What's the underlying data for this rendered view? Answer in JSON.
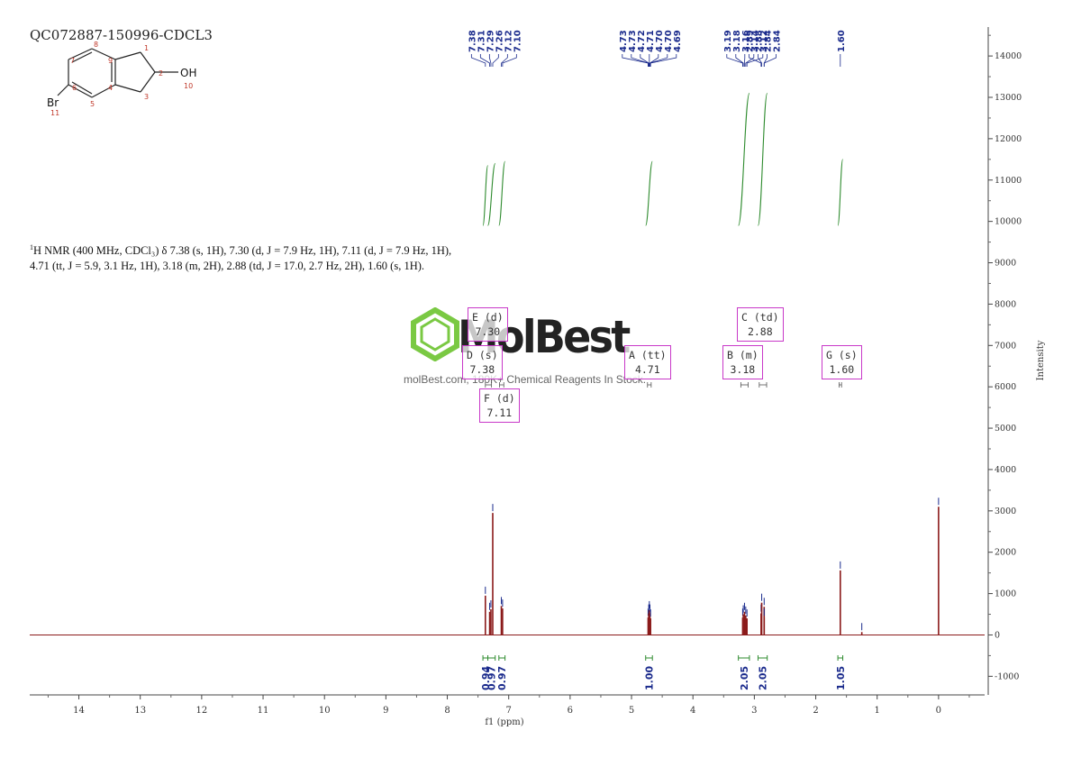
{
  "sample_id": "QC072887-150996-CDCL3",
  "description": {
    "nucleus_sup": "1",
    "line": "H NMR (400 MHz, CDCl₃) δ 7.38 (s, 1H), 7.30 (d, J = 7.9 Hz, 1H), 7.11 (d, J = 7.9 Hz, 1H), 4.71 (tt, J = 5.9, 3.1 Hz, 1H), 3.18 (m, 2H), 2.88 (td, J = 17.0, 2.7 Hz, 2H), 1.60 (s, 1H)."
  },
  "molecule": {
    "atom_labels": [
      "1",
      "2",
      "3",
      "4",
      "5",
      "6",
      "7",
      "8",
      "9",
      "10",
      "11"
    ],
    "groups": {
      "oh": "OH",
      "br": "Br"
    }
  },
  "watermark": {
    "brand": "MolBest",
    "tagline": "molBest.com, 180K+ Chemical Reagents In Stock."
  },
  "multiplets": [
    {
      "letter": "E",
      "mult": "d",
      "shift": "7.30"
    },
    {
      "letter": "D",
      "mult": "s",
      "shift": "7.38"
    },
    {
      "letter": "F",
      "mult": "d",
      "shift": "7.11"
    },
    {
      "letter": "A",
      "mult": "tt",
      "shift": "4.71"
    },
    {
      "letter": "B",
      "mult": "m",
      "shift": "3.18"
    },
    {
      "letter": "C",
      "mult": "td",
      "shift": "2.88"
    },
    {
      "letter": "G",
      "mult": "s",
      "shift": "1.60"
    }
  ],
  "colors": {
    "spectrum": "#8b1a1a",
    "peak_labels": "#1a2a8c",
    "integral_curve": "#2e8b2e",
    "multiplet_box": "#c838c8",
    "watermark_green": "#7ac943"
  },
  "chart_data": {
    "type": "line",
    "xlabel": "f1 (ppm)",
    "ylabel": "Intensity",
    "xlim": [
      14.8,
      -0.75
    ],
    "ylim": [
      -1450,
      14700
    ],
    "x_ticks": [
      14,
      13,
      12,
      11,
      10,
      9,
      8,
      7,
      6,
      5,
      4,
      3,
      2,
      1,
      0
    ],
    "y_ticks": [
      -1000,
      0,
      1000,
      2000,
      3000,
      4000,
      5000,
      6000,
      7000,
      8000,
      9000,
      10000,
      11000,
      12000,
      13000,
      14000
    ],
    "peaks": [
      {
        "ppm": 7.38,
        "height": 950
      },
      {
        "ppm": 7.31,
        "height": 560
      },
      {
        "ppm": 7.29,
        "height": 620
      },
      {
        "ppm": 7.26,
        "height": 2950
      },
      {
        "ppm": 7.12,
        "height": 700
      },
      {
        "ppm": 7.1,
        "height": 640
      },
      {
        "ppm": 4.73,
        "height": 420
      },
      {
        "ppm": 4.72,
        "height": 520
      },
      {
        "ppm": 4.71,
        "height": 600
      },
      {
        "ppm": 4.7,
        "height": 520
      },
      {
        "ppm": 4.69,
        "height": 400
      },
      {
        "ppm": 3.19,
        "height": 420
      },
      {
        "ppm": 3.18,
        "height": 500
      },
      {
        "ppm": 3.16,
        "height": 560
      },
      {
        "ppm": 3.14,
        "height": 470
      },
      {
        "ppm": 3.12,
        "height": 400
      },
      {
        "ppm": 2.89,
        "height": 520
      },
      {
        "ppm": 2.88,
        "height": 780
      },
      {
        "ppm": 2.84,
        "height": 680
      },
      {
        "ppm": 2.84,
        "height": 420
      },
      {
        "ppm": 1.6,
        "height": 1560
      },
      {
        "ppm": 1.25,
        "height": 70
      },
      {
        "ppm": 0.0,
        "height": 3100
      }
    ],
    "peak_labels": [
      "7.38",
      "7.31",
      "7.29",
      "7.26",
      "7.12",
      "7.10",
      "4.73",
      "4.73",
      "4.72",
      "4.71",
      "4.70",
      "4.70",
      "4.69",
      "3.19",
      "3.18",
      "3.16",
      "3.14",
      "3.12",
      "2.89",
      "2.88",
      "2.84",
      "2.84",
      "1.60"
    ],
    "integrals": [
      {
        "from": 7.42,
        "to": 7.34,
        "value": "0.94"
      },
      {
        "from": 7.34,
        "to": 7.22,
        "value": "0.97"
      },
      {
        "from": 7.16,
        "to": 7.06,
        "value": "0.97"
      },
      {
        "from": 4.77,
        "to": 4.66,
        "value": "1.00"
      },
      {
        "from": 3.26,
        "to": 3.08,
        "value": "2.05"
      },
      {
        "from": 2.94,
        "to": 2.79,
        "value": "2.05"
      },
      {
        "from": 1.64,
        "to": 1.56,
        "value": "1.05"
      }
    ]
  }
}
